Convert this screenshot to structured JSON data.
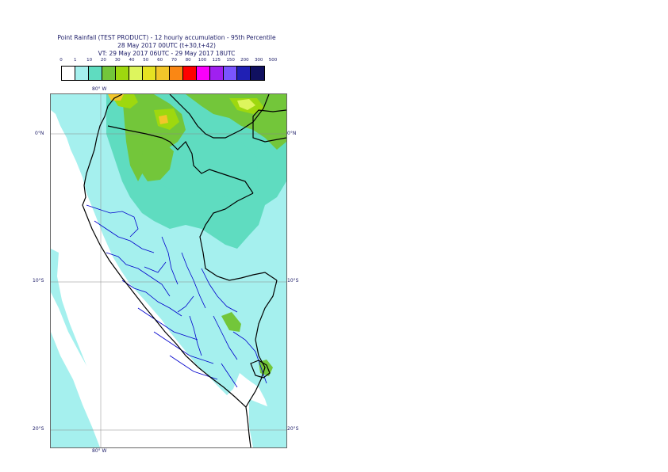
{
  "title": {
    "line1": "Point Rainfall (TEST PRODUCT) - 12 hourly accumulation - 95th Percentile",
    "line2": "28 May 2017 00UTC (t+30,t+42)",
    "line3": "VT: 29 May 2017 06UTC - 29 May 2017 18UTC"
  },
  "legend": {
    "thresholds": [
      "0",
      "1",
      "10",
      "20",
      "30",
      "40",
      "50",
      "60",
      "70",
      "80",
      "100",
      "125",
      "150",
      "200",
      "300",
      "500"
    ],
    "colors": [
      "#ffffff",
      "#a5f0ee",
      "#5fdcc0",
      "#73c63a",
      "#9ed80f",
      "#ddf55d",
      "#e6e222",
      "#f2c62a",
      "#fa8714",
      "#ff0000",
      "#fa00fa",
      "#a020f0",
      "#7a55ff",
      "#2020b4",
      "#101060"
    ]
  },
  "axes": {
    "lon_top": "80° W",
    "lon_bottom": "80° W",
    "lat_left": [
      "0°N",
      "10°S",
      "20°S"
    ],
    "lat_right": [
      "0°N",
      "10°S",
      "20°S"
    ]
  },
  "map": {
    "colors": {
      "ocean": "#ffffff",
      "light_rain": "#a5f0ee",
      "moderate_rain": "#5fdcc0",
      "heavy_rain": "#73c63a",
      "very_heavy_rain": "#9ed80f",
      "peak_rain": "#ddf55d",
      "extreme_rain": "#f2c62a",
      "country_border": "#000000",
      "region_border": "#0000cc",
      "graticule": "#888888"
    }
  }
}
